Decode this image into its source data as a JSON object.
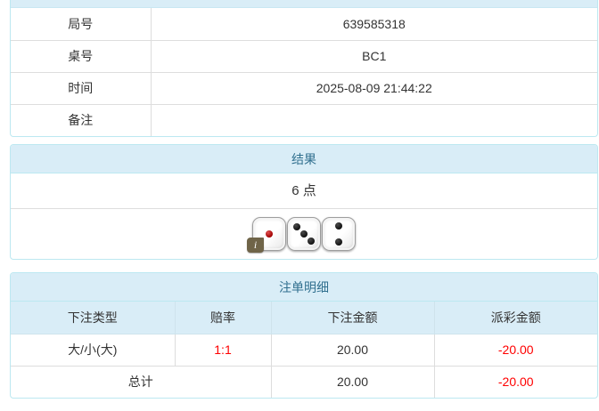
{
  "colors": {
    "panel_border": "#bce8f1",
    "panel_header_bg": "#d9edf7",
    "panel_header_text": "#31708f",
    "cell_border": "#dddddd",
    "body_text": "#333333",
    "negative_text": "#ff0000",
    "info_badge_bg": "#6f6448"
  },
  "game_info": {
    "rows": [
      {
        "label": "局号",
        "value": "639585318"
      },
      {
        "label": "桌号",
        "value": "BC1"
      },
      {
        "label": "时间",
        "value": "2025-08-09 21:44:22"
      },
      {
        "label": "备注",
        "value": ""
      }
    ]
  },
  "result_panel": {
    "title": "结果",
    "points": "6 点",
    "dice_values": [
      1,
      3,
      2
    ],
    "info_badge_label": "i"
  },
  "bet_panel": {
    "title": "注单明细",
    "columns": [
      "下注类型",
      "赔率",
      "下注金额",
      "派彩金额"
    ],
    "rows": [
      {
        "type": "大/小(大)",
        "odds": "1:1",
        "bet_amount": "20.00",
        "payout": "-20.00"
      }
    ],
    "total": {
      "label": "总计",
      "bet_amount": "20.00",
      "payout": "-20.00"
    }
  }
}
